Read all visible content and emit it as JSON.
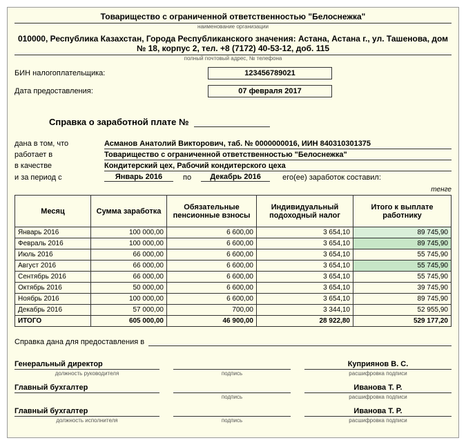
{
  "header": {
    "org_name": "Товарищество с ограниченной ответственностью \"Белоснежка\"",
    "org_sub": "наименование организации",
    "address": "010000, Республика Казахстан, Города Республиканского значения: Астана, Астана г., ул. Ташенова, дом № 18, корпус 2, тел. +8 (7172) 40-53-12, доб. 115",
    "address_sub": "полный почтовый адрес, № телефона",
    "bin_label": "БИН налогоплательщика:",
    "bin_value": "123456789021",
    "date_label": "Дата предоставления:",
    "date_value": "07 февраля 2017"
  },
  "title": "Справка о заработной плате №",
  "info": {
    "given_label": "дана в том, что",
    "person": "Асманов Анатолий Викторович, таб. № 0000000016, ИИН 840310301375",
    "works_label": "работает в",
    "works_value": "Товарищество с ограниченной ответственностью \"Белоснежка\"",
    "position_label": "в качестве",
    "position_value": "Кондитерский цех, Рабочий кондитерского цеха",
    "period_label": "и за период с",
    "period_from": "Январь 2016",
    "period_sep": "по",
    "period_to": "Декабрь 2016",
    "period_tail": "его(ее) заработок составил:",
    "unit": "тенге"
  },
  "table": {
    "headers": [
      "Месяц",
      "Сумма заработка",
      "Обязательные пенсионные взносы",
      "Индивидуальный подоходный налог",
      "Итого к выплате работнику"
    ],
    "rows": [
      {
        "cells": [
          "Январь 2016",
          "100 000,00",
          "6 600,00",
          "3 654,10",
          "89 745,90"
        ],
        "hl": "green2"
      },
      {
        "cells": [
          "Февраль 2016",
          "100 000,00",
          "6 600,00",
          "3 654,10",
          "89 745,90"
        ],
        "hl": "green1"
      },
      {
        "cells": [
          "Июль 2016",
          "66 000,00",
          "6 600,00",
          "3 654,10",
          "55 745,90"
        ],
        "hl": ""
      },
      {
        "cells": [
          "Август 2016",
          "66 000,00",
          "6 600,00",
          "3 654,10",
          "55 745,90"
        ],
        "hl": "green1"
      },
      {
        "cells": [
          "Сентябрь 2016",
          "66 000,00",
          "6 600,00",
          "3 654,10",
          "55 745,90"
        ],
        "hl": ""
      },
      {
        "cells": [
          "Октябрь 2016",
          "50 000,00",
          "6 600,00",
          "3 654,10",
          "39 745,90"
        ],
        "hl": ""
      },
      {
        "cells": [
          "Ноябрь 2016",
          "100 000,00",
          "6 600,00",
          "3 654,10",
          "89 745,90"
        ],
        "hl": ""
      },
      {
        "cells": [
          "Декабрь 2016",
          "57 000,00",
          "700,00",
          "3 344,10",
          "52 955,90"
        ],
        "hl": ""
      }
    ],
    "total": [
      "ИТОГО",
      "605 000,00",
      "46 900,00",
      "28 922,80",
      "529 177,20"
    ]
  },
  "purpose_label": "Справка дана для предоставления в",
  "signatures": {
    "row1": {
      "role": "Генеральный директор",
      "name": "Куприянов В. С.",
      "sub1": "должность руководителя",
      "sub2": "подпись",
      "sub3": "расшифровка подписи"
    },
    "row2": {
      "role": "Главный бухгалтер",
      "name": "Иванова Т. Р.",
      "sub1": "",
      "sub2": "подпись",
      "sub3": "расшифровка подписи"
    },
    "row3": {
      "role": "Главный бухгалтер",
      "name": "Иванова Т. Р.",
      "sub1": "должность исполнителя",
      "sub2": "подпись",
      "sub3": "расшифровка подписи"
    }
  },
  "col_widths": [
    "110px",
    "110px",
    "130px",
    "140px",
    "auto"
  ]
}
